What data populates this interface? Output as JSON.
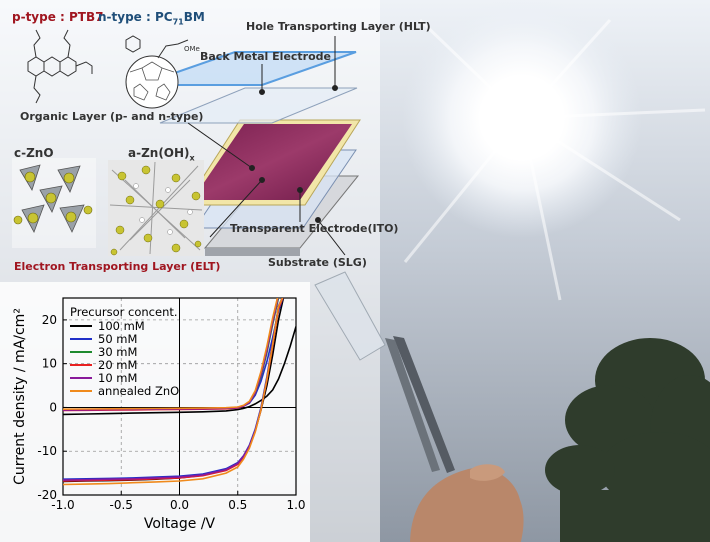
{
  "labels": {
    "ptype": "p-type : PTB7",
    "ntype_prefix": "n-type : PC",
    "ntype_sub": "71",
    "ntype_suffix": "BM",
    "ome": "OMe",
    "czno": "c-ZnO",
    "azno_prefix": "a-Zn(OH)",
    "azno_sub": "x",
    "hlt": "Hole Transporting Layer (HLT)",
    "back_metal": "Back Metal Electrode",
    "organic": "Organic Layer (p- and n-type)",
    "ito": "Transparent Electrode(ITO)",
    "substrate": "Substrate (SLG)",
    "elt": "Electron Transporting Layer (ELT)"
  },
  "colors": {
    "sky_top": "#e8eef5",
    "sky_bottom": "#8d98a6",
    "hlt": "#7fb2e8",
    "back_metal": "#c7d2e0",
    "organic_face": "#8a2a5a",
    "organic_yellow": "#f1e2a0",
    "ito": "#bcd2ee",
    "substrate": "#c8cad0"
  },
  "chart_data": {
    "type": "line",
    "xlabel": "Voltage /V",
    "ylabel": "Current density / mA/cm²",
    "xlim": [
      -1.0,
      1.0
    ],
    "ylim": [
      -20,
      25
    ],
    "xticks": [
      "-1.0",
      "-0.5",
      "0.0",
      "0.5",
      "1.0"
    ],
    "yticks": [
      "-20",
      "-10",
      "0",
      "10",
      "20"
    ],
    "xtick_values": [
      -1.0,
      -0.5,
      0.0,
      0.5,
      1.0
    ],
    "ytick_values": [
      -20,
      -10,
      0,
      10,
      20
    ],
    "grid": true,
    "legend": {
      "placement": "top-left",
      "title": "Precursor concent."
    },
    "x": [
      -1.0,
      -0.8,
      -0.6,
      -0.4,
      -0.2,
      0.0,
      0.2,
      0.4,
      0.5,
      0.55,
      0.6,
      0.65,
      0.7,
      0.75,
      0.8,
      0.85,
      0.9,
      0.95,
      1.0
    ],
    "series": [
      {
        "name": "100 mM",
        "color": "#000000",
        "dark": [
          -1.6,
          -1.5,
          -1.4,
          -1.3,
          -1.2,
          -1.1,
          -1.0,
          -0.8,
          -0.5,
          -0.2,
          0.2,
          0.8,
          1.6,
          2.6,
          4.0,
          6.5,
          10.0,
          14.0,
          18.5
        ],
        "light": [
          -16.9,
          -16.8,
          -16.7,
          -16.6,
          -16.4,
          -16.1,
          -15.5,
          -14.2,
          -12.8,
          -11.2,
          -8.8,
          -5.3,
          -0.6,
          5.0,
          12.0,
          20.0,
          26.0,
          26.0,
          26.0
        ]
      },
      {
        "name": "50 mM",
        "color": "#1f2fc8",
        "dark": [
          -0.5,
          -0.45,
          -0.4,
          -0.35,
          -0.3,
          -0.25,
          -0.2,
          -0.1,
          0.0,
          0.3,
          1.0,
          2.8,
          6.0,
          10.5,
          16.0,
          22.0,
          26.0,
          26.0,
          26.0
        ],
        "light": [
          -16.4,
          -16.3,
          -16.2,
          -16.1,
          -15.9,
          -15.7,
          -15.2,
          -14.0,
          -12.6,
          -11.0,
          -8.6,
          -5.0,
          0.0,
          7.0,
          15.0,
          23.0,
          26.0,
          26.0,
          26.0
        ]
      },
      {
        "name": "30 mM",
        "color": "#1e8a2e",
        "dark": [
          -0.6,
          -0.55,
          -0.5,
          -0.45,
          -0.4,
          -0.35,
          -0.3,
          -0.2,
          -0.05,
          0.3,
          1.1,
          3.2,
          7.0,
          12.5,
          19.0,
          25.0,
          26.0,
          26.0,
          26.0
        ],
        "light": [
          -16.7,
          -16.6,
          -16.5,
          -16.4,
          -16.2,
          -16.0,
          -15.5,
          -14.3,
          -12.9,
          -11.2,
          -8.9,
          -5.4,
          -0.4,
          6.5,
          14.5,
          23.0,
          26.0,
          26.0,
          26.0
        ]
      },
      {
        "name": "20 mM",
        "color": "#e82020",
        "dark": [
          -0.7,
          -0.65,
          -0.6,
          -0.55,
          -0.5,
          -0.45,
          -0.4,
          -0.3,
          -0.1,
          0.3,
          1.2,
          3.5,
          7.8,
          13.5,
          20.0,
          26.0,
          26.0,
          26.0,
          26.0
        ],
        "light": [
          -16.8,
          -16.7,
          -16.6,
          -16.5,
          -16.3,
          -16.1,
          -15.6,
          -14.4,
          -13.0,
          -11.3,
          -9.0,
          -5.5,
          -0.5,
          6.2,
          14.0,
          22.5,
          26.0,
          26.0,
          26.0
        ]
      },
      {
        "name": "10 mM",
        "color": "#8a1a9a",
        "dark": [
          -0.6,
          -0.55,
          -0.5,
          -0.45,
          -0.4,
          -0.35,
          -0.3,
          -0.2,
          -0.05,
          0.3,
          1.1,
          3.3,
          7.4,
          13.0,
          19.5,
          25.5,
          26.0,
          26.0,
          26.0
        ],
        "light": [
          -16.6,
          -16.5,
          -16.4,
          -16.3,
          -16.1,
          -15.9,
          -15.4,
          -14.2,
          -12.8,
          -11.1,
          -8.8,
          -5.3,
          -0.3,
          6.6,
          14.6,
          23.2,
          26.0,
          26.0,
          26.0
        ]
      },
      {
        "name": "annealed ZnO",
        "color": "#f08a1c",
        "dark": [
          -0.4,
          -0.35,
          -0.3,
          -0.28,
          -0.25,
          -0.2,
          -0.15,
          -0.05,
          0.1,
          0.5,
          1.4,
          3.8,
          8.2,
          14.0,
          20.5,
          26.0,
          26.0,
          26.0,
          26.0
        ],
        "light": [
          -17.6,
          -17.5,
          -17.4,
          -17.2,
          -17.0,
          -16.8,
          -16.3,
          -15.0,
          -13.6,
          -11.8,
          -9.3,
          -5.6,
          -0.5,
          6.4,
          14.4,
          23.0,
          26.0,
          26.0,
          26.0
        ]
      }
    ]
  }
}
